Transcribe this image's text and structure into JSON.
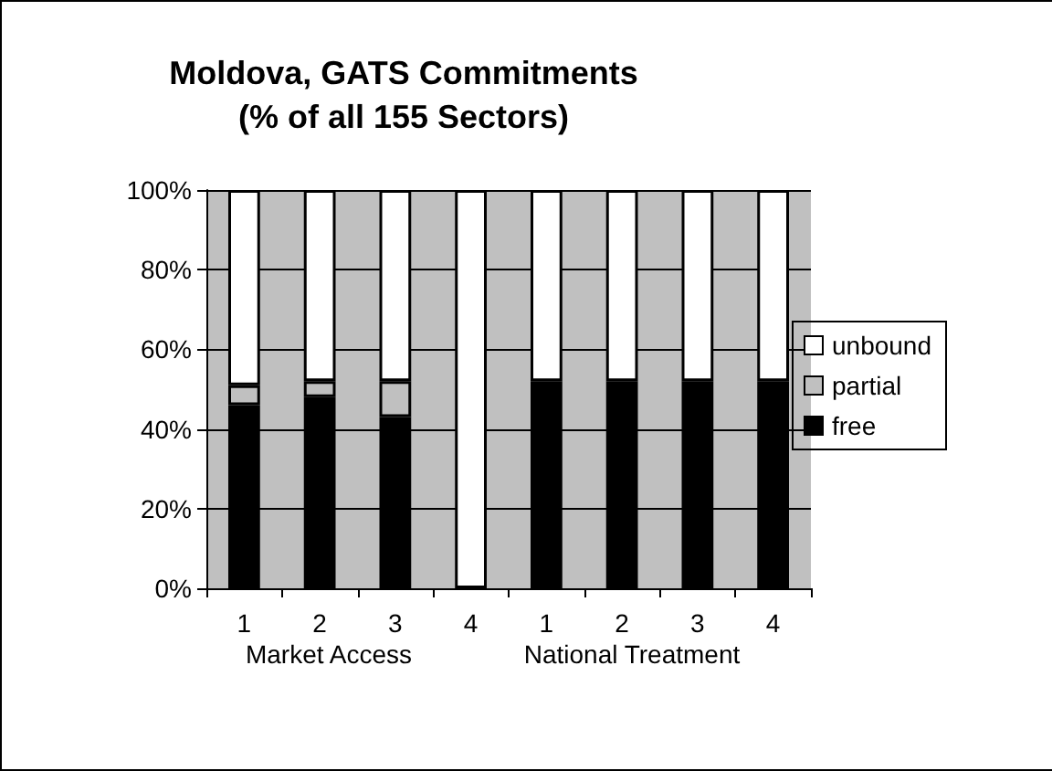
{
  "chart_data": {
    "type": "bar",
    "title": "Moldova, GATS Commitments\n(% of all 155 Sectors)",
    "categories": [
      "1",
      "2",
      "3",
      "4",
      "1",
      "2",
      "3",
      "4"
    ],
    "stacked": true,
    "series": [
      {
        "name": "free",
        "color": "#000000",
        "values": [
          46,
          48,
          43,
          0,
          52,
          52,
          52,
          52
        ]
      },
      {
        "name": "partial",
        "color": "#c0c0c0",
        "values": [
          5,
          4,
          9,
          0,
          0,
          0,
          0,
          0
        ]
      },
      {
        "name": "unbound",
        "color": "#ffffff",
        "values": [
          49,
          48,
          48,
          100,
          48,
          48,
          48,
          48
        ]
      }
    ],
    "ylim": [
      0,
      100
    ],
    "yticks": [
      {
        "value": 0,
        "label": "0%"
      },
      {
        "value": 20,
        "label": "20%"
      },
      {
        "value": 40,
        "label": "40%"
      },
      {
        "value": 60,
        "label": "60%"
      },
      {
        "value": 80,
        "label": "80%"
      },
      {
        "value": 100,
        "label": "100%"
      }
    ],
    "grid": "y",
    "legend": "right",
    "annotations": [
      "Market Access",
      "National Treatment"
    ]
  }
}
